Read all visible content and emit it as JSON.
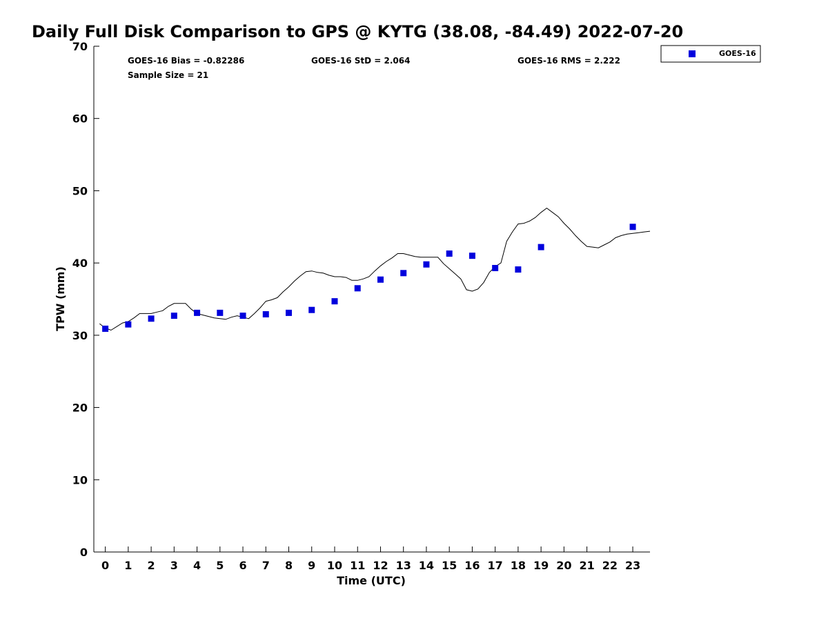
{
  "chart_data": {
    "type": "scatter",
    "title": "Daily Full Disk Comparison to GPS @ KYTG (38.08, -84.49) 2022-07-20",
    "xlabel": "Time (UTC)",
    "ylabel": "TPW (mm)",
    "xlim": [
      -0.5,
      23.75
    ],
    "ylim": [
      0,
      70
    ],
    "x_ticks": [
      0,
      1,
      2,
      3,
      4,
      5,
      6,
      7,
      8,
      9,
      10,
      11,
      12,
      13,
      14,
      15,
      16,
      17,
      18,
      19,
      20,
      21,
      22,
      23
    ],
    "y_ticks": [
      0,
      10,
      20,
      30,
      40,
      50,
      60,
      70
    ],
    "grid": false,
    "legend_position": "top-right (outside plot)",
    "stats": {
      "bias": "GOES-16 Bias = -0.82286",
      "std": "GOES-16 StD = 2.064",
      "rms": "GOES-16 RMS = 2.222",
      "sample": "Sample Size = 21"
    },
    "series": [
      {
        "name": "GOES-16",
        "marker": "square",
        "color": "#0000dd",
        "x": [
          0,
          1,
          2,
          3,
          4,
          5,
          6,
          7,
          8,
          9,
          10,
          11,
          12,
          13,
          14,
          15,
          16,
          17,
          18,
          19,
          23
        ],
        "y": [
          30.9,
          31.5,
          32.3,
          32.7,
          33.1,
          33.1,
          32.7,
          32.9,
          33.1,
          33.5,
          34.7,
          36.5,
          37.7,
          38.6,
          39.8,
          41.3,
          41.0,
          39.3,
          39.1,
          42.2,
          45.0
        ]
      },
      {
        "type": "line",
        "color": "#000000",
        "x": [
          -0.25,
          0.0,
          0.25,
          0.5,
          0.75,
          1.0,
          1.25,
          1.5,
          1.75,
          2.0,
          2.25,
          2.5,
          2.75,
          3.0,
          3.25,
          3.5,
          3.75,
          4.0,
          4.25,
          4.5,
          4.75,
          5.0,
          5.25,
          5.5,
          5.75,
          6.0,
          6.25,
          6.5,
          6.75,
          7.0,
          7.25,
          7.5,
          7.75,
          8.0,
          8.25,
          8.5,
          8.75,
          9.0,
          9.25,
          9.5,
          9.75,
          10.0,
          10.25,
          10.5,
          10.75,
          11.0,
          11.25,
          11.5,
          11.75,
          12.0,
          12.25,
          12.5,
          12.75,
          13.0,
          13.25,
          13.5,
          13.75,
          14.0,
          14.25,
          14.5,
          14.75,
          15.0,
          15.25,
          15.5,
          15.75,
          16.0,
          16.25,
          16.5,
          16.75,
          17.0,
          17.25,
          17.5,
          17.75,
          18.0,
          18.25,
          18.5,
          18.75,
          19.0,
          19.25,
          19.5,
          19.75,
          20.0,
          20.25,
          20.5,
          20.75,
          21.0,
          21.25,
          21.5,
          21.75,
          22.0,
          22.25,
          22.5,
          22.75,
          23.0,
          23.25,
          23.5,
          23.75
        ],
        "y": [
          31.6,
          31.0,
          30.7,
          31.2,
          31.7,
          31.9,
          32.4,
          33.0,
          33.0,
          33.0,
          33.2,
          33.4,
          34.0,
          34.4,
          34.4,
          34.4,
          33.6,
          33.0,
          32.8,
          32.6,
          32.4,
          32.3,
          32.2,
          32.5,
          32.7,
          32.5,
          32.3,
          33.0,
          33.8,
          34.7,
          34.9,
          35.2,
          36.0,
          36.7,
          37.5,
          38.2,
          38.8,
          38.9,
          38.7,
          38.6,
          38.3,
          38.1,
          38.1,
          38.0,
          37.6,
          37.6,
          37.8,
          38.1,
          38.9,
          39.6,
          40.2,
          40.7,
          41.3,
          41.3,
          41.1,
          40.9,
          40.8,
          40.8,
          40.8,
          40.8,
          39.9,
          39.2,
          38.5,
          37.8,
          36.3,
          36.1,
          36.4,
          37.3,
          38.7,
          39.5,
          40.0,
          43.0,
          44.3,
          45.4,
          45.5,
          45.8,
          46.3,
          47.0,
          47.6,
          47.0,
          46.4,
          45.5,
          44.7,
          43.8,
          43.0,
          42.3,
          42.2,
          42.1,
          42.5,
          42.9,
          43.5,
          43.8,
          44.0,
          44.1,
          44.2,
          44.3,
          44.4
        ]
      }
    ]
  }
}
